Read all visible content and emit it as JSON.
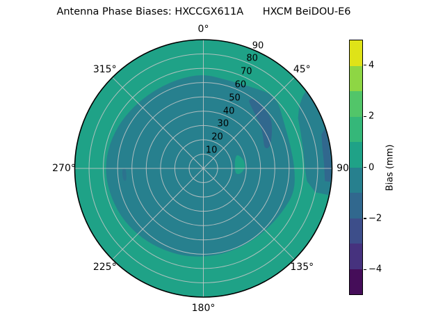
{
  "title": "Antenna Phase Biases: HXCCGX611A      HXCM BeiDOU-E6",
  "chart_data": {
    "type": "heatmap",
    "projection": "polar",
    "title": "Antenna Phase Biases: HXCCGX611A      HXCM BeiDOU-E6",
    "grid": true,
    "angular_ticks": [
      {
        "deg": 0,
        "label": "0°"
      },
      {
        "deg": 45,
        "label": "45°"
      },
      {
        "deg": 90,
        "label": "90"
      },
      {
        "deg": 135,
        "label": "135°"
      },
      {
        "deg": 180,
        "label": "180°"
      },
      {
        "deg": 225,
        "label": "225°"
      },
      {
        "deg": 270,
        "label": "270°"
      },
      {
        "deg": 315,
        "label": "315°"
      }
    ],
    "radial_ticks": [
      10,
      20,
      30,
      40,
      50,
      60,
      70,
      80,
      90
    ],
    "radial_axis_max": 90,
    "radial_label_angle_deg": 24,
    "regions": [
      {
        "name": "sky-background",
        "shape": "disk",
        "bias_band_mm": "0 to +1",
        "color": "#1fa287"
      },
      {
        "name": "inner-region",
        "shape": "smooth",
        "bias_band_mm": "-1 to 0",
        "color": "#27808e",
        "points": [
          [
            0,
            66
          ],
          [
            15,
            64
          ],
          [
            30,
            66
          ],
          [
            45,
            72
          ],
          [
            60,
            65
          ],
          [
            75,
            63
          ],
          [
            90,
            64
          ],
          [
            105,
            66
          ],
          [
            120,
            63
          ],
          [
            135,
            61.5
          ],
          [
            150,
            61
          ],
          [
            165,
            61.5
          ],
          [
            180,
            62
          ],
          [
            195,
            63
          ],
          [
            210,
            64
          ],
          [
            225,
            65.5
          ],
          [
            240,
            67
          ],
          [
            255,
            68
          ],
          [
            270,
            69
          ],
          [
            285,
            68
          ],
          [
            300,
            66.5
          ],
          [
            315,
            65
          ],
          [
            330,
            64.5
          ],
          [
            345,
            65
          ]
        ]
      },
      {
        "name": "northeast-trough",
        "shape": "smooth",
        "bias_band_mm": "-2 to -1",
        "color": "#31688e",
        "points": [
          [
            33,
            57.5
          ],
          [
            37,
            61
          ],
          [
            45,
            60
          ],
          [
            54,
            59
          ],
          [
            63,
            54
          ],
          [
            71,
            49.5
          ],
          [
            73,
            47
          ],
          [
            71,
            45
          ],
          [
            63,
            47
          ],
          [
            54,
            50
          ],
          [
            45,
            52
          ],
          [
            37,
            55
          ]
        ]
      },
      {
        "name": "east-rim-band",
        "shape": "rim",
        "bias_band_mm": "-1 to 0",
        "color": "#27808e",
        "theta": [
          53,
          102
        ],
        "outer_r": 90,
        "inner": [
          [
            102,
            80
          ],
          [
            97,
            73
          ],
          [
            90,
            71
          ],
          [
            80,
            71
          ],
          [
            70,
            72.5
          ],
          [
            62,
            75
          ],
          [
            57,
            80
          ],
          [
            54,
            86
          ]
        ]
      },
      {
        "name": "east-rim-trough",
        "shape": "rim",
        "bias_band_mm": "-2 to -1",
        "color": "#31688e",
        "theta": [
          72,
          96
        ],
        "outer_r": 89.3,
        "inner": [
          [
            96,
            85.5
          ],
          [
            88,
            84.5
          ],
          [
            80,
            84.5
          ],
          [
            74,
            86
          ]
        ]
      },
      {
        "name": "center-east-island",
        "shape": "smooth",
        "bias_band_mm": "0 to +1",
        "color": "#1fa287",
        "points": [
          [
            68,
            26
          ],
          [
            78,
            29
          ],
          [
            88,
            29.5
          ],
          [
            97,
            27
          ],
          [
            100,
            24
          ],
          [
            97,
            22.5
          ],
          [
            88,
            22
          ],
          [
            78,
            22.5
          ],
          [
            70,
            24
          ]
        ]
      },
      {
        "name": "west-faint-streak",
        "shape": "smooth",
        "bias_band_mm": "-2 to -1",
        "color": "#31688e",
        "opacity": 0.55,
        "points": [
          [
            261,
            56.5
          ],
          [
            266,
            57
          ],
          [
            270,
            56.5
          ],
          [
            270,
            54.5
          ],
          [
            266,
            54
          ],
          [
            261,
            54.5
          ]
        ]
      }
    ],
    "colorbar": {
      "label": "Bias (mm)",
      "range": [
        -5,
        5
      ],
      "band_colors_bottom_to_top": [
        "#450d59",
        "#46327e",
        "#3d4e8a",
        "#31688e",
        "#27808e",
        "#1fa287",
        "#35b779",
        "#52c569",
        "#8ed644",
        "#dfe318"
      ],
      "ticks": [
        {
          "value": 4,
          "label": "4"
        },
        {
          "value": 2,
          "label": "2"
        },
        {
          "value": 0,
          "label": "0"
        },
        {
          "value": -2,
          "label": "−2"
        },
        {
          "value": -4,
          "label": "−4"
        }
      ]
    }
  }
}
